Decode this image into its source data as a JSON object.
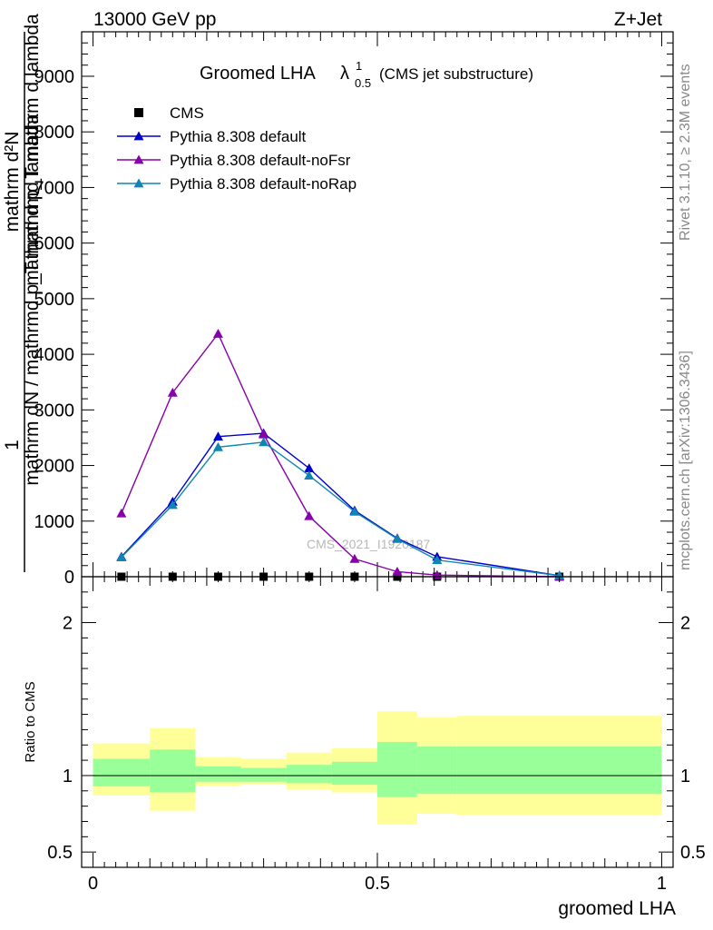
{
  "header": {
    "left": "13000 GeV pp",
    "right": "Z+Jet"
  },
  "title": {
    "main": "Groomed LHA",
    "lambda": "λ",
    "sup": "1",
    "sub": "0.5",
    "note": "(CMS jet substructure)"
  },
  "side_labels": {
    "rivet": "Rivet 3.1.10, ≥ 2.3M events",
    "mcplots": "mcplots.cern.ch [arXiv:1306.3436]"
  },
  "watermark": "CMS_2021_I1920187",
  "y_label_main": {
    "numerator_one": "1",
    "denominator_one": "mathrm dN / mathrmd p_T mathrmd lambda",
    "numerator_two": "mathrm d²N",
    "denominator_two": "mathrm d p_T mathrm d lambda"
  },
  "chart_data": [
    {
      "type": "line",
      "panel": "main",
      "x_range": [
        -0.02,
        1.02
      ],
      "ylim": [
        0,
        9800
      ],
      "y_ticks": [
        {
          "v": 0,
          "label": "0"
        },
        {
          "v": 1000,
          "label": "1000"
        },
        {
          "v": 2000,
          "label": "2000"
        },
        {
          "v": 3000,
          "label": "3000"
        },
        {
          "v": 4000,
          "label": "4000"
        },
        {
          "v": 5000,
          "label": "5000"
        },
        {
          "v": 6000,
          "label": "6000"
        },
        {
          "v": 7000,
          "label": "7000"
        },
        {
          "v": 8000,
          "label": "8000"
        },
        {
          "v": 9000,
          "label": "9000"
        }
      ],
      "legend_placement": "top-left",
      "series": [
        {
          "name": "CMS",
          "marker": "square",
          "color": "#000000",
          "x": [
            0.05,
            0.14,
            0.22,
            0.3,
            0.38,
            0.46,
            0.535,
            0.605,
            0.82
          ],
          "y": [
            0,
            0,
            0,
            0,
            0,
            0,
            0,
            0,
            0
          ]
        },
        {
          "name": "Pythia 8.308 default",
          "marker": "triangle",
          "color": "#0000cc",
          "x": [
            0.05,
            0.14,
            0.22,
            0.3,
            0.38,
            0.46,
            0.535,
            0.605,
            0.82
          ],
          "y": [
            360,
            1350,
            2520,
            2580,
            1950,
            1190,
            690,
            360,
            20
          ]
        },
        {
          "name": "Pythia 8.308 default-noFsr",
          "marker": "triangle",
          "color": "#8800aa",
          "x": [
            0.05,
            0.14,
            0.22,
            0.3,
            0.38,
            0.46,
            0.535,
            0.605,
            0.82
          ],
          "y": [
            1140,
            3310,
            4370,
            2560,
            1090,
            320,
            90,
            30,
            0
          ]
        },
        {
          "name": "Pythia 8.308 default-noRap",
          "marker": "triangle",
          "color": "#0f85b2",
          "x": [
            0.05,
            0.14,
            0.22,
            0.3,
            0.38,
            0.46,
            0.535,
            0.605,
            0.82
          ],
          "y": [
            350,
            1290,
            2330,
            2420,
            1820,
            1170,
            680,
            300,
            20
          ]
        }
      ]
    },
    {
      "type": "area",
      "panel": "ratio",
      "ylabel": "Ratio to CMS",
      "xlabel": "groomed LHA",
      "x_range": [
        -0.02,
        1.02
      ],
      "x_ticks": [
        {
          "v": 0,
          "label": "0"
        },
        {
          "v": 0.5,
          "label": "0.5"
        },
        {
          "v": 1,
          "label": "1"
        }
      ],
      "ylim": [
        0.4,
        2.3
      ],
      "y_ticks": [
        {
          "v": 0.5,
          "label": "0.5"
        },
        {
          "v": 1,
          "label": "1"
        },
        {
          "v": 2,
          "label": "2"
        }
      ],
      "reference_line": 1,
      "bands": [
        {
          "x0": 0.0,
          "x1": 0.1,
          "yellow": [
            0.87,
            1.21
          ],
          "green": [
            0.93,
            1.11
          ]
        },
        {
          "x0": 0.1,
          "x1": 0.18,
          "yellow": [
            0.77,
            1.31
          ],
          "green": [
            0.89,
            1.17
          ]
        },
        {
          "x0": 0.18,
          "x1": 0.26,
          "yellow": [
            0.93,
            1.12
          ],
          "green": [
            0.96,
            1.06
          ]
        },
        {
          "x0": 0.26,
          "x1": 0.34,
          "yellow": [
            0.94,
            1.11
          ],
          "green": [
            0.96,
            1.05
          ]
        },
        {
          "x0": 0.34,
          "x1": 0.42,
          "yellow": [
            0.91,
            1.15
          ],
          "green": [
            0.95,
            1.07
          ]
        },
        {
          "x0": 0.42,
          "x1": 0.5,
          "yellow": [
            0.89,
            1.18
          ],
          "green": [
            0.94,
            1.09
          ]
        },
        {
          "x0": 0.5,
          "x1": 0.57,
          "yellow": [
            0.68,
            1.42
          ],
          "green": [
            0.86,
            1.22
          ]
        },
        {
          "x0": 0.57,
          "x1": 0.64,
          "yellow": [
            0.75,
            1.38
          ],
          "green": [
            0.88,
            1.19
          ]
        },
        {
          "x0": 0.64,
          "x1": 1.0,
          "yellow": [
            0.74,
            1.39
          ],
          "green": [
            0.88,
            1.19
          ]
        }
      ]
    }
  ]
}
